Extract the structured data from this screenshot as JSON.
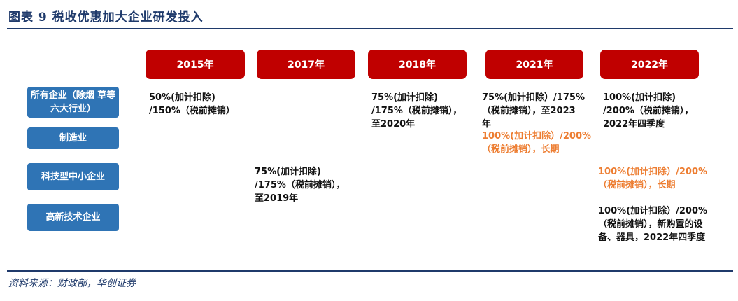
{
  "title": "图表 9   税收优惠加大企业研发投入",
  "source": "资料来源：财政部，华创证券",
  "years": [
    "2015年",
    "2017年",
    "2018年",
    "2021年",
    "2022年"
  ],
  "categories": [
    "所有企业（除烟\n草等六大行业）",
    "制造业",
    "科技型中小企业",
    "高新技术企业"
  ],
  "cells": {
    "all_2015": "50%(加计扣除)\n/150%（税前摊销）",
    "all_2018": "75%(加计扣除)\n/175%（税前摊销），\n至2020年",
    "all_2021": "75%(加计扣除）/175%\n（税前摊销），至2023\n年",
    "all_2022": "100%(加计扣除)\n/200%（税前摊销），\n2022年四季度",
    "mfg_2021": "100%(加计扣除）/200%\n（税前摊销），长期",
    "sme_2017": "75%(加计扣除)\n/175%（税前摊销），\n至2019年",
    "sme_2022": "100%(加计扣除）/200%\n（税前摊销），长期",
    "hightech_2022": "100%(加计扣除）/200%\n（税前摊销），新购置的设\n备、器具，2022年四季度"
  },
  "colors": {
    "year_box": "#c00000",
    "category_box": "#2f74b5",
    "highlight_text": "#ed7d31",
    "rule": "#1f3a6b"
  }
}
